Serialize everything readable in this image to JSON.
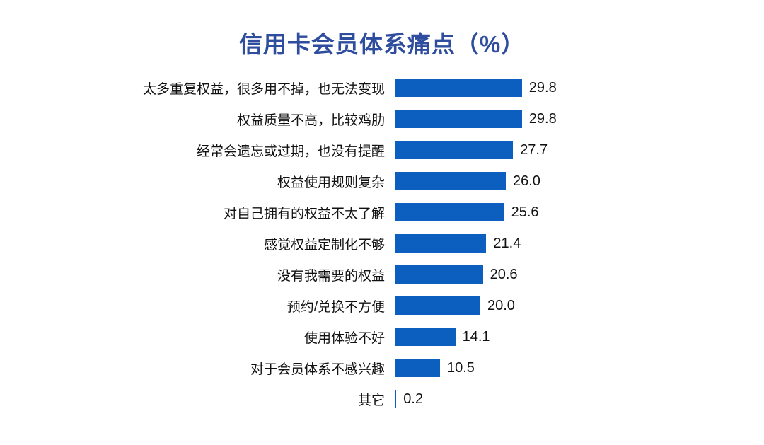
{
  "chart_data": {
    "type": "bar",
    "orientation": "horizontal",
    "title": "信用卡会员体系痛点（%）",
    "title_color": "#2F4D9F",
    "bar_color": "#0D5FBF",
    "axis_color": "#D6D6D6",
    "value_axis_range": [
      0,
      30
    ],
    "grid": false,
    "legend": "none",
    "categories": [
      "太多重复权益，很多用不掉，也无法变现",
      "权益质量不高，比较鸡肋",
      "经常会遗忘或过期，也没有提醒",
      "权益使用规则复杂",
      "对自己拥有的权益不太了解",
      "感觉权益定制化不够",
      "没有我需要的权益",
      "预约/兑换不方便",
      "使用体验不好",
      "对于会员体系不感兴趣",
      "其它"
    ],
    "values": [
      29.8,
      29.8,
      27.7,
      26.0,
      25.6,
      21.4,
      20.6,
      20.0,
      14.1,
      10.5,
      0.2
    ],
    "value_labels": [
      "29.8",
      "29.8",
      "27.7",
      "26.0",
      "25.6",
      "21.4",
      "20.6",
      "20.0",
      "14.1",
      "10.5",
      "0.2"
    ]
  }
}
